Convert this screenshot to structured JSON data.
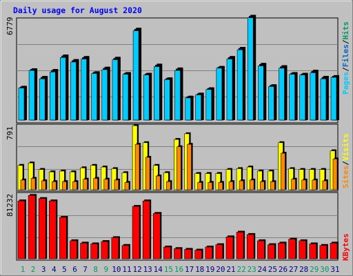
{
  "title": "Daily usage for August 2020",
  "colors": {
    "background": "#c0c0c0",
    "title": "#0000ff",
    "pages": "#00ccff",
    "files": "#0066cc",
    "hits": "#009966",
    "visits": "#ffff00",
    "sites": "#ff8800",
    "kbytes": "#ff0000",
    "weekend_day": "#009966",
    "weekday": "#000080"
  },
  "chart_data": [
    {
      "type": "bar",
      "panel": "hits",
      "categories": [
        "1",
        "2",
        "3",
        "4",
        "5",
        "6",
        "7",
        "8",
        "9",
        "10",
        "11",
        "12",
        "13",
        "14",
        "15",
        "16",
        "17",
        "18",
        "19",
        "20",
        "21",
        "22",
        "23",
        "24",
        "25",
        "26",
        "27",
        "28",
        "29",
        "30",
        "31"
      ],
      "y_max_label": "6779",
      "ylim": [
        0,
        6779
      ],
      "legend": [
        "Pages",
        "Files",
        "Hits"
      ],
      "series": [
        {
          "name": "Hits",
          "values": [
            2150,
            3300,
            2800,
            3250,
            4200,
            3900,
            4100,
            3100,
            3400,
            4050,
            3050,
            5950,
            3000,
            3600,
            2700,
            3350,
            1500,
            1700,
            2050,
            3450,
            4100,
            4700,
            6800,
            3650,
            2250,
            3500,
            3050,
            3000,
            3200,
            2800,
            2850
          ]
        },
        {
          "name": "Files",
          "values": [
            2150,
            3300,
            2800,
            3250,
            4200,
            3900,
            4100,
            3100,
            3400,
            4050,
            3050,
            5950,
            3000,
            3600,
            2700,
            3350,
            1500,
            1700,
            2050,
            3450,
            4100,
            4700,
            6800,
            3650,
            2250,
            3500,
            3050,
            3000,
            3200,
            2800,
            2850
          ]
        },
        {
          "name": "Pages",
          "values": [
            2100,
            3250,
            2700,
            3150,
            4100,
            3800,
            4000,
            3050,
            3300,
            3950,
            3000,
            5850,
            2950,
            3500,
            2650,
            3250,
            1450,
            1650,
            2000,
            3400,
            4000,
            4600,
            6700,
            3550,
            2200,
            3400,
            3000,
            2950,
            3100,
            2700,
            2800
          ]
        }
      ]
    },
    {
      "type": "bar",
      "panel": "visits",
      "categories": [
        "1",
        "2",
        "3",
        "4",
        "5",
        "6",
        "7",
        "8",
        "9",
        "10",
        "11",
        "12",
        "13",
        "14",
        "15",
        "16",
        "17",
        "18",
        "19",
        "20",
        "21",
        "22",
        "23",
        "24",
        "25",
        "26",
        "27",
        "28",
        "29",
        "30",
        "31"
      ],
      "y_max_label": "791",
      "ylim": [
        0,
        791
      ],
      "legend": [
        "Sites",
        "Visits"
      ],
      "series": [
        {
          "name": "Visits",
          "values": [
            300,
            330,
            250,
            220,
            230,
            220,
            270,
            300,
            280,
            260,
            210,
            790,
            580,
            300,
            210,
            620,
            690,
            200,
            200,
            200,
            250,
            260,
            280,
            230,
            230,
            580,
            260,
            250,
            250,
            250,
            480
          ]
        },
        {
          "name": "Sites",
          "values": [
            120,
            140,
            110,
            100,
            100,
            100,
            130,
            140,
            130,
            120,
            90,
            560,
            400,
            170,
            100,
            530,
            560,
            90,
            90,
            90,
            100,
            110,
            120,
            100,
            100,
            450,
            130,
            120,
            120,
            110,
            380
          ]
        }
      ]
    },
    {
      "type": "bar",
      "panel": "kbytes",
      "categories": [
        "1",
        "2",
        "3",
        "4",
        "5",
        "6",
        "7",
        "8",
        "9",
        "10",
        "11",
        "12",
        "13",
        "14",
        "15",
        "16",
        "17",
        "18",
        "19",
        "20",
        "21",
        "22",
        "23",
        "24",
        "25",
        "26",
        "27",
        "28",
        "29",
        "30",
        "31"
      ],
      "y_max_label": "81232",
      "ylim": [
        0,
        81232
      ],
      "legend": [
        "KBytes"
      ],
      "series": [
        {
          "name": "KBytes",
          "values": [
            74000,
            81000,
            77000,
            74000,
            53000,
            23000,
            20000,
            19000,
            22000,
            27000,
            17000,
            67000,
            74000,
            58000,
            15000,
            13000,
            12000,
            11000,
            15000,
            18000,
            28000,
            34000,
            31000,
            23000,
            18000,
            20000,
            25000,
            23000,
            19000,
            17000,
            20000
          ]
        }
      ]
    }
  ]
}
